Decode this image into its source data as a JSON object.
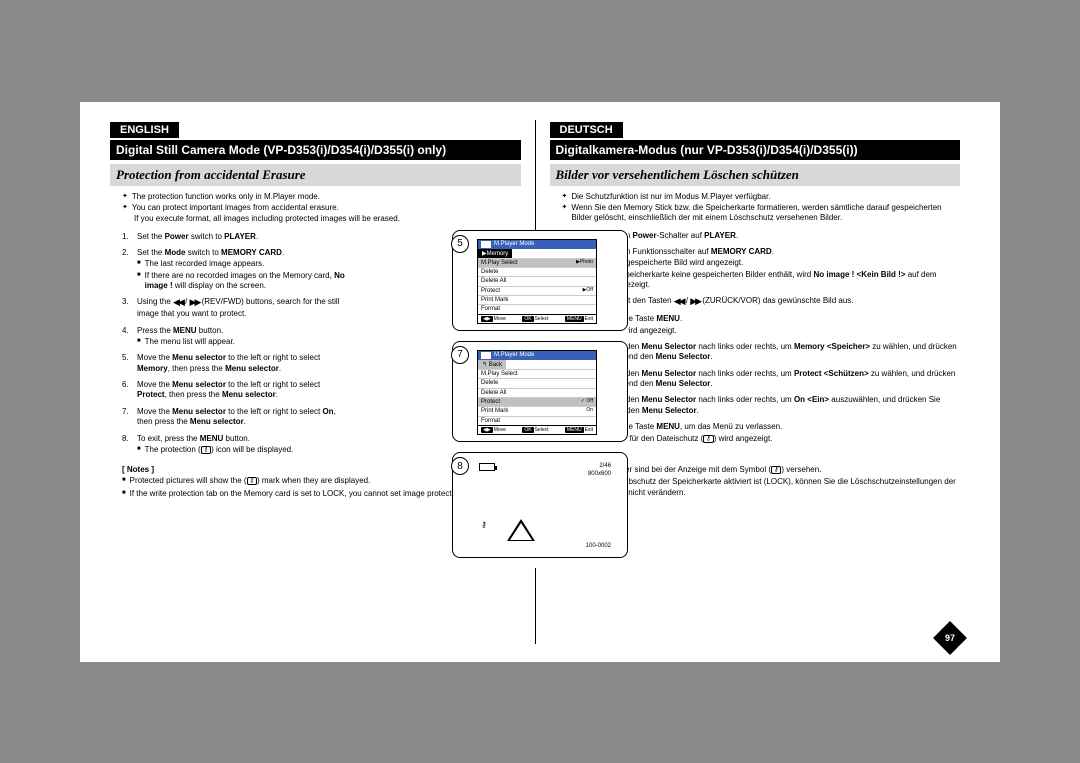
{
  "page_number": "97",
  "english": {
    "lang": "ENGLISH",
    "mode_title": "Digital Still Camera Mode (VP-D353(i)/D354(i)/D355(i) only)",
    "subtitle": "Protection from accidental Erasure",
    "intro": [
      "The protection function works only in M.Player mode.",
      "You can protect important images from accidental erasure.",
      "If you execute format, all images including protected images will be erased."
    ],
    "steps": [
      {
        "n": "1.",
        "body": "Set the <b>Power</b> switch to <b>PLAYER</b>."
      },
      {
        "n": "2.",
        "body": "Set the <b>Mode</b> switch to <b>MEMORY CARD</b>.",
        "subs": [
          "The last recorded image appears.",
          "If there are no recorded images on the Memory card, <b>No image !</b> will display on the screen."
        ]
      },
      {
        "n": "3.",
        "body": "Using the <span class='rewff'>◀◀</span> / <span class='rewff'>▶▶</span> (REV/FWD) buttons, search for the still image that you want to protect."
      },
      {
        "n": "4.",
        "body": "Press the <b>MENU</b> button.",
        "subs": [
          "The menu list will appear."
        ]
      },
      {
        "n": "5.",
        "body": "Move the <b>Menu selector</b> to the left or right to select <b>Memory</b>, then press the <b>Menu selector</b>."
      },
      {
        "n": "6.",
        "body": "Move the <b>Menu selector</b> to the left or right to select <b>Protect</b>, then press the <b>Menu selector</b>."
      },
      {
        "n": "7.",
        "body": "Move the <b>Menu selector</b> to the left or right to select <b>On</b>, then press the <b>Menu selector</b>."
      },
      {
        "n": "8.",
        "body": "To exit, press the <b>MENU</b> button.",
        "subs": [
          "The protection (<span class='lock-glyph'>⚷</span>) icon will be displayed."
        ]
      }
    ],
    "notes_label": "[ Notes ]",
    "notes": [
      "Protected pictures will show the (<span class='lock-glyph'>⚷</span>) mark when they are displayed.",
      "If the write protection tab on the Memory card is set to LOCK, you cannot set image protection."
    ]
  },
  "deutsch": {
    "lang": "DEUTSCH",
    "mode_title": "Digitalkamera-Modus (nur VP-D353(i)/D354(i)/D355(i))",
    "subtitle": "Bilder vor versehentlichem Löschen schützen",
    "intro": [
      "Die Schutzfunktion ist nur im Modus M.Player verfügbar.",
      "Wenn Sie den Memory Stick bzw. die Speicherkarte formatieren, werden sämtliche darauf gespeicherten Bilder gelöscht, einschließlich der mit einem Löschschutz versehenen Bilder."
    ],
    "steps": [
      {
        "n": "1.",
        "body": "Stellen Sie den <b>Power</b>-Schalter auf <b>PLAYER</b>."
      },
      {
        "n": "2.",
        "body": "Stellen Sie den Funktionsschalter auf <b>MEMORY CARD</b>.",
        "subs": [
          "Das zuletzt gespeicherte Bild wird angezeigt.",
          "Wenn die Speicherkarte keine gespeicherten Bilder enthält, wird <b>No image ! &lt;Kein Bild !&gt;</b> auf dem Monitor angezeigt."
        ]
      },
      {
        "n": "3.",
        "body": "Wählen Sie mit den Tasten <span class='rewff'>◀◀</span> / <span class='rewff'>▶▶</span> (ZURÜCK/VOR) das gewünschte Bild aus."
      },
      {
        "n": "4.",
        "body": "Drücken Sie die Taste <b>MENU</b>.",
        "subs": [
          "Das Menü wird angezeigt."
        ]
      },
      {
        "n": "5.",
        "body": "Bewegen Sie den <b>Menu Selector</b> nach links oder rechts, um <b>Memory &lt;Speicher&gt;</b> zu wählen, und drücken Sie anschließend den <b>Menu Selector</b>."
      },
      {
        "n": "6.",
        "body": "Bewegen Sie den <b>Menu Selector</b> nach links oder rechts, um <b>Protect &lt;Schützen&gt;</b> zu wählen, und drücken Sie anschließend den <b>Menu Selector</b>."
      },
      {
        "n": "7.",
        "body": "Bewegen Sie den <b>Menu Selector</b> nach links oder rechts, um <b>On &lt;Ein&gt;</b> auszuwählen, und drücken Sie anschließend den <b>Menu Selector</b>."
      },
      {
        "n": "8.",
        "body": "Drücken Sie die Taste <b>MENU</b>, um das Menü zu verlassen.",
        "subs": [
          "Das Symbol für den Dateischutz (<span class='lock-glyph'>⚷</span>) wird angezeigt."
        ]
      }
    ],
    "notes_label": "[ Hinweise ]",
    "notes": [
      "Geschützte Bilder sind bei der Anzeige mit dem Symbol (<span class='lock-glyph'>⚷</span>) versehen.",
      "Wenn der Schreibschutz der Speicherkarte aktiviert ist (LOCK), können Sie die Löschschutzeinstellungen der einzelnen Bilder nicht verändern."
    ]
  },
  "diagrams": {
    "circ5": "5",
    "circ7": "7",
    "circ8": "8",
    "screen1": {
      "header": "M.Player Mode",
      "tab": "▶Memory",
      "rows": [
        {
          "label": "M.Play Select",
          "val": "▶Photo",
          "sel": true
        },
        {
          "label": "Delete"
        },
        {
          "label": "Delete All"
        },
        {
          "label": "Protect",
          "val": "▶Off"
        },
        {
          "label": "Print Mark"
        },
        {
          "label": "Format"
        }
      ],
      "footer": {
        "move": "Move",
        "select": "Select",
        "exit": "Exit"
      }
    },
    "screen2": {
      "header": "M.Player Mode",
      "back": "Back",
      "rows": [
        {
          "label": "M.Play Select"
        },
        {
          "label": "Delete"
        },
        {
          "label": "Delete All"
        },
        {
          "label": "Protect",
          "val": "✓ Off",
          "sel": true
        },
        {
          "label": "Print Mark",
          "val": "On"
        },
        {
          "label": "Format"
        }
      ],
      "footer": {
        "move": "Move",
        "select": "Select",
        "exit": "Exit"
      }
    },
    "preview": {
      "counter": "2/46",
      "res": "800x600",
      "file": "100-0002"
    }
  }
}
